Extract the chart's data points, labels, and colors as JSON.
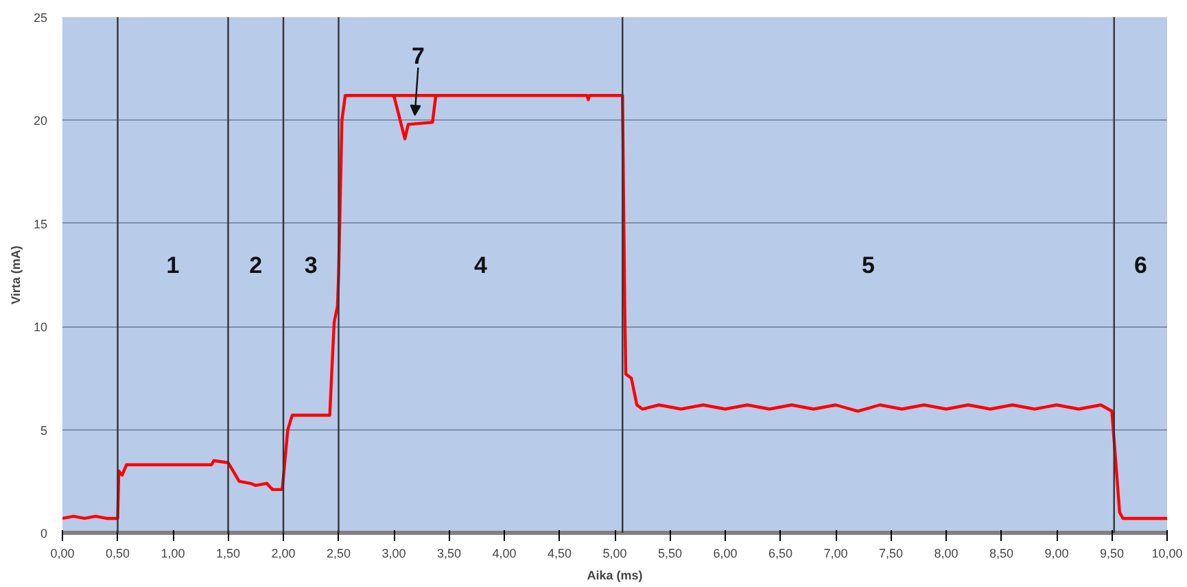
{
  "chart_data": {
    "type": "line",
    "xlabel": "Aika (ms)",
    "ylabel": "Virta (mA)",
    "xlim": [
      0,
      10
    ],
    "ylim": [
      0,
      25
    ],
    "xticks": [
      {
        "value": 0,
        "label": "0,00"
      },
      {
        "value": 0.5,
        "label": "0,50"
      },
      {
        "value": 1,
        "label": "1,00"
      },
      {
        "value": 1.5,
        "label": "1,50"
      },
      {
        "value": 2,
        "label": "2,00"
      },
      {
        "value": 2.5,
        "label": "2,50"
      },
      {
        "value": 3,
        "label": "3,00"
      },
      {
        "value": 3.5,
        "label": "3,50"
      },
      {
        "value": 4,
        "label": "4,00"
      },
      {
        "value": 4.5,
        "label": "4,50"
      },
      {
        "value": 5,
        "label": "5,00"
      },
      {
        "value": 5.5,
        "label": "5,50"
      },
      {
        "value": 6,
        "label": "6,00"
      },
      {
        "value": 6.5,
        "label": "6,50"
      },
      {
        "value": 7,
        "label": "7,00"
      },
      {
        "value": 7.5,
        "label": "7,50"
      },
      {
        "value": 8,
        "label": "8,00"
      },
      {
        "value": 8.5,
        "label": "8,50"
      },
      {
        "value": 9,
        "label": "9,00"
      },
      {
        "value": 9.5,
        "label": "9,50"
      },
      {
        "value": 10,
        "label": "10,00"
      }
    ],
    "yticks": [
      0,
      5,
      10,
      15,
      20,
      25
    ],
    "grid": "y",
    "marker": "none",
    "line_style": "solid",
    "series": [
      {
        "color": "#ff0000",
        "x": [
          0,
          0.1,
          0.2,
          0.3,
          0.4,
          0.5,
          0.51,
          0.54,
          0.58,
          0.8,
          1.0,
          1.2,
          1.35,
          1.37,
          1.5,
          1.6,
          1.7,
          1.75,
          1.85,
          1.9,
          1.99,
          2.04,
          2.08,
          2.3,
          2.42,
          2.44,
          2.46,
          2.49,
          2.5,
          2.53,
          2.56,
          3.0,
          3.5,
          4.0,
          4.5,
          4.75,
          4.76,
          4.77,
          5.07,
          5.09,
          5.1,
          5.15,
          5.2,
          5.25,
          5.4,
          5.6,
          5.8,
          6.0,
          6.2,
          6.4,
          6.6,
          6.8,
          7.0,
          7.2,
          7.4,
          7.6,
          7.8,
          8.0,
          8.2,
          8.4,
          8.6,
          8.8,
          9.0,
          9.2,
          9.4,
          9.5,
          9.57,
          9.6,
          10
        ],
        "values": [
          0.7,
          0.8,
          0.7,
          0.8,
          0.7,
          0.7,
          3.0,
          2.8,
          3.3,
          3.3,
          3.3,
          3.3,
          3.3,
          3.5,
          3.4,
          2.5,
          2.4,
          2.3,
          2.4,
          2.1,
          2.1,
          5.0,
          5.7,
          5.7,
          5.7,
          8.0,
          10.2,
          11.0,
          12.5,
          20.0,
          21.2,
          21.2,
          21.2,
          21.2,
          21.2,
          21.2,
          21.0,
          21.2,
          21.2,
          11.0,
          7.7,
          7.5,
          6.2,
          6.0,
          6.2,
          6.0,
          6.2,
          6.0,
          6.2,
          6.0,
          6.2,
          6.0,
          6.2,
          5.9,
          6.2,
          6.0,
          6.2,
          6.0,
          6.2,
          6.0,
          6.2,
          6.0,
          6.2,
          6.0,
          6.2,
          5.9,
          1.0,
          0.7,
          0.7
        ]
      },
      {
        "color": "#ff0000",
        "x": [
          3.0,
          3.1,
          3.13,
          3.35,
          3.38
        ],
        "values": [
          21.2,
          19.1,
          19.8,
          19.9,
          21.2
        ]
      }
    ],
    "ref_lines": [
      {
        "axis": "x",
        "value": 0.5,
        "color": "#333333"
      },
      {
        "axis": "x",
        "value": 1.5,
        "color": "#333333"
      },
      {
        "axis": "x",
        "value": 2.0,
        "color": "#333333"
      },
      {
        "axis": "x",
        "value": 2.5,
        "color": "#333333"
      },
      {
        "axis": "x",
        "value": 5.07,
        "color": "#333333"
      },
      {
        "axis": "x",
        "value": 9.52,
        "color": "#333333"
      }
    ],
    "annotations": [
      "1",
      "2",
      "3",
      "4",
      "5",
      "6",
      "7"
    ]
  }
}
